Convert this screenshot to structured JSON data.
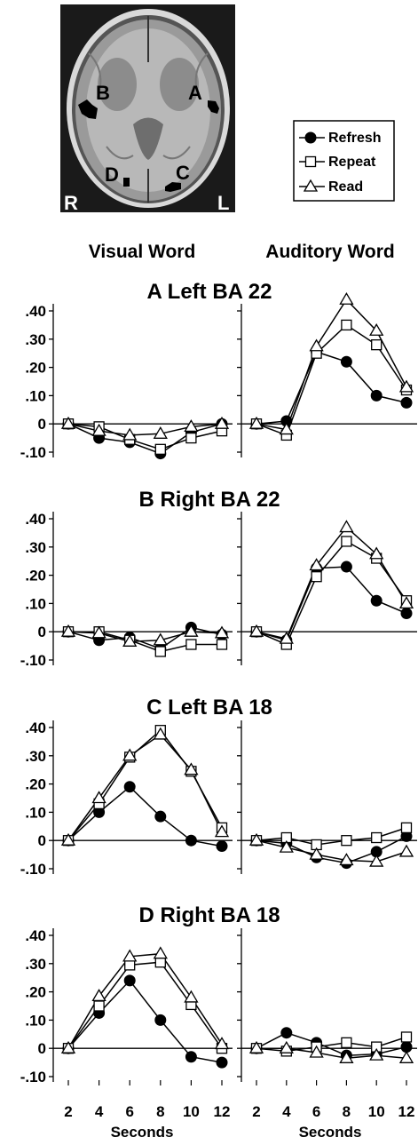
{
  "brain": {
    "labels": {
      "A": "A",
      "B": "B",
      "C": "C",
      "D": "D",
      "R": "R",
      "L": "L"
    }
  },
  "legend": {
    "items": [
      {
        "name": "Refresh",
        "marker": "filled-circle"
      },
      {
        "name": "Repeat",
        "marker": "open-square"
      },
      {
        "name": "Read",
        "marker": "open-triangle"
      }
    ]
  },
  "column_headers": [
    "Visual Word",
    "Auditory Word"
  ],
  "x_ticks": [
    "2",
    "4",
    "6",
    "8",
    "10",
    "12"
  ],
  "y_ticks": [
    ".40",
    ".30",
    ".20",
    ".10",
    "0",
    "-.10"
  ],
  "xlabel": "Seconds",
  "chart_data": [
    {
      "type": "line",
      "title": "A Left BA 22",
      "x": [
        2,
        4,
        6,
        8,
        10,
        12
      ],
      "ylim": [
        -0.1,
        0.4
      ],
      "xlabel": "Seconds",
      "panels": [
        {
          "column": "Visual Word",
          "series": [
            {
              "name": "Refresh",
              "values": [
                0.0,
                -0.05,
                -0.065,
                -0.105,
                -0.03,
                0.0
              ]
            },
            {
              "name": "Repeat",
              "values": [
                0.0,
                -0.01,
                -0.055,
                -0.09,
                -0.05,
                -0.025
              ]
            },
            {
              "name": "Read",
              "values": [
                0.0,
                -0.025,
                -0.04,
                -0.035,
                -0.01,
                0.0
              ]
            }
          ]
        },
        {
          "column": "Auditory Word",
          "series": [
            {
              "name": "Refresh",
              "values": [
                0.0,
                0.01,
                0.255,
                0.22,
                0.1,
                0.075
              ]
            },
            {
              "name": "Repeat",
              "values": [
                0.0,
                -0.04,
                0.25,
                0.35,
                0.28,
                0.12
              ]
            },
            {
              "name": "Read",
              "values": [
                0.0,
                -0.02,
                0.275,
                0.44,
                0.33,
                0.13
              ]
            }
          ]
        }
      ]
    },
    {
      "type": "line",
      "title": "B Right BA 22",
      "x": [
        2,
        4,
        6,
        8,
        10,
        12
      ],
      "ylim": [
        -0.1,
        0.4
      ],
      "xlabel": "Seconds",
      "panels": [
        {
          "column": "Visual Word",
          "series": [
            {
              "name": "Refresh",
              "values": [
                0.0,
                -0.03,
                -0.02,
                -0.06,
                0.015,
                -0.01
              ]
            },
            {
              "name": "Repeat",
              "values": [
                0.0,
                0.0,
                -0.03,
                -0.07,
                -0.045,
                -0.045
              ]
            },
            {
              "name": "Read",
              "values": [
                0.0,
                -0.005,
                -0.035,
                -0.03,
                0.0,
                -0.005
              ]
            }
          ]
        },
        {
          "column": "Auditory Word",
          "series": [
            {
              "name": "Refresh",
              "values": [
                0.0,
                -0.03,
                0.225,
                0.23,
                0.11,
                0.065
              ]
            },
            {
              "name": "Repeat",
              "values": [
                0.0,
                -0.045,
                0.195,
                0.32,
                0.26,
                0.11
              ]
            },
            {
              "name": "Read",
              "values": [
                0.0,
                -0.025,
                0.235,
                0.37,
                0.275,
                0.1
              ]
            }
          ]
        }
      ]
    },
    {
      "type": "line",
      "title": "C Left BA 18",
      "x": [
        2,
        4,
        6,
        8,
        10,
        12
      ],
      "ylim": [
        -0.1,
        0.4
      ],
      "xlabel": "Seconds",
      "panels": [
        {
          "column": "Visual Word",
          "series": [
            {
              "name": "Refresh",
              "values": [
                0.0,
                0.1,
                0.19,
                0.085,
                0.0,
                -0.02
              ]
            },
            {
              "name": "Repeat",
              "values": [
                0.0,
                0.13,
                0.295,
                0.39,
                0.245,
                0.045
              ]
            },
            {
              "name": "Read",
              "values": [
                0.0,
                0.15,
                0.3,
                0.375,
                0.25,
                0.03
              ]
            }
          ]
        },
        {
          "column": "Auditory Word",
          "series": [
            {
              "name": "Refresh",
              "values": [
                0.0,
                -0.01,
                -0.06,
                -0.08,
                -0.04,
                0.015
              ]
            },
            {
              "name": "Repeat",
              "values": [
                0.0,
                0.01,
                -0.015,
                0.0,
                0.01,
                0.045
              ]
            },
            {
              "name": "Read",
              "values": [
                0.0,
                -0.025,
                -0.05,
                -0.07,
                -0.075,
                -0.04
              ]
            }
          ]
        }
      ]
    },
    {
      "type": "line",
      "title": "D Right BA 18",
      "x": [
        2,
        4,
        6,
        8,
        10,
        12
      ],
      "ylim": [
        -0.1,
        0.4
      ],
      "xlabel": "Seconds",
      "panels": [
        {
          "column": "Visual Word",
          "series": [
            {
              "name": "Refresh",
              "values": [
                0.0,
                0.125,
                0.24,
                0.1,
                -0.03,
                -0.05
              ]
            },
            {
              "name": "Repeat",
              "values": [
                0.0,
                0.15,
                0.295,
                0.305,
                0.155,
                0.0
              ]
            },
            {
              "name": "Read",
              "values": [
                0.0,
                0.185,
                0.325,
                0.335,
                0.18,
                0.015
              ]
            }
          ]
        },
        {
          "column": "Auditory Word",
          "series": [
            {
              "name": "Refresh",
              "values": [
                0.0,
                0.055,
                0.02,
                -0.025,
                -0.02,
                0.005
              ]
            },
            {
              "name": "Repeat",
              "values": [
                0.0,
                -0.01,
                0.005,
                0.02,
                0.005,
                0.04
              ]
            },
            {
              "name": "Read",
              "values": [
                0.0,
                0.0,
                -0.015,
                -0.035,
                -0.025,
                -0.035
              ]
            }
          ]
        }
      ]
    }
  ]
}
